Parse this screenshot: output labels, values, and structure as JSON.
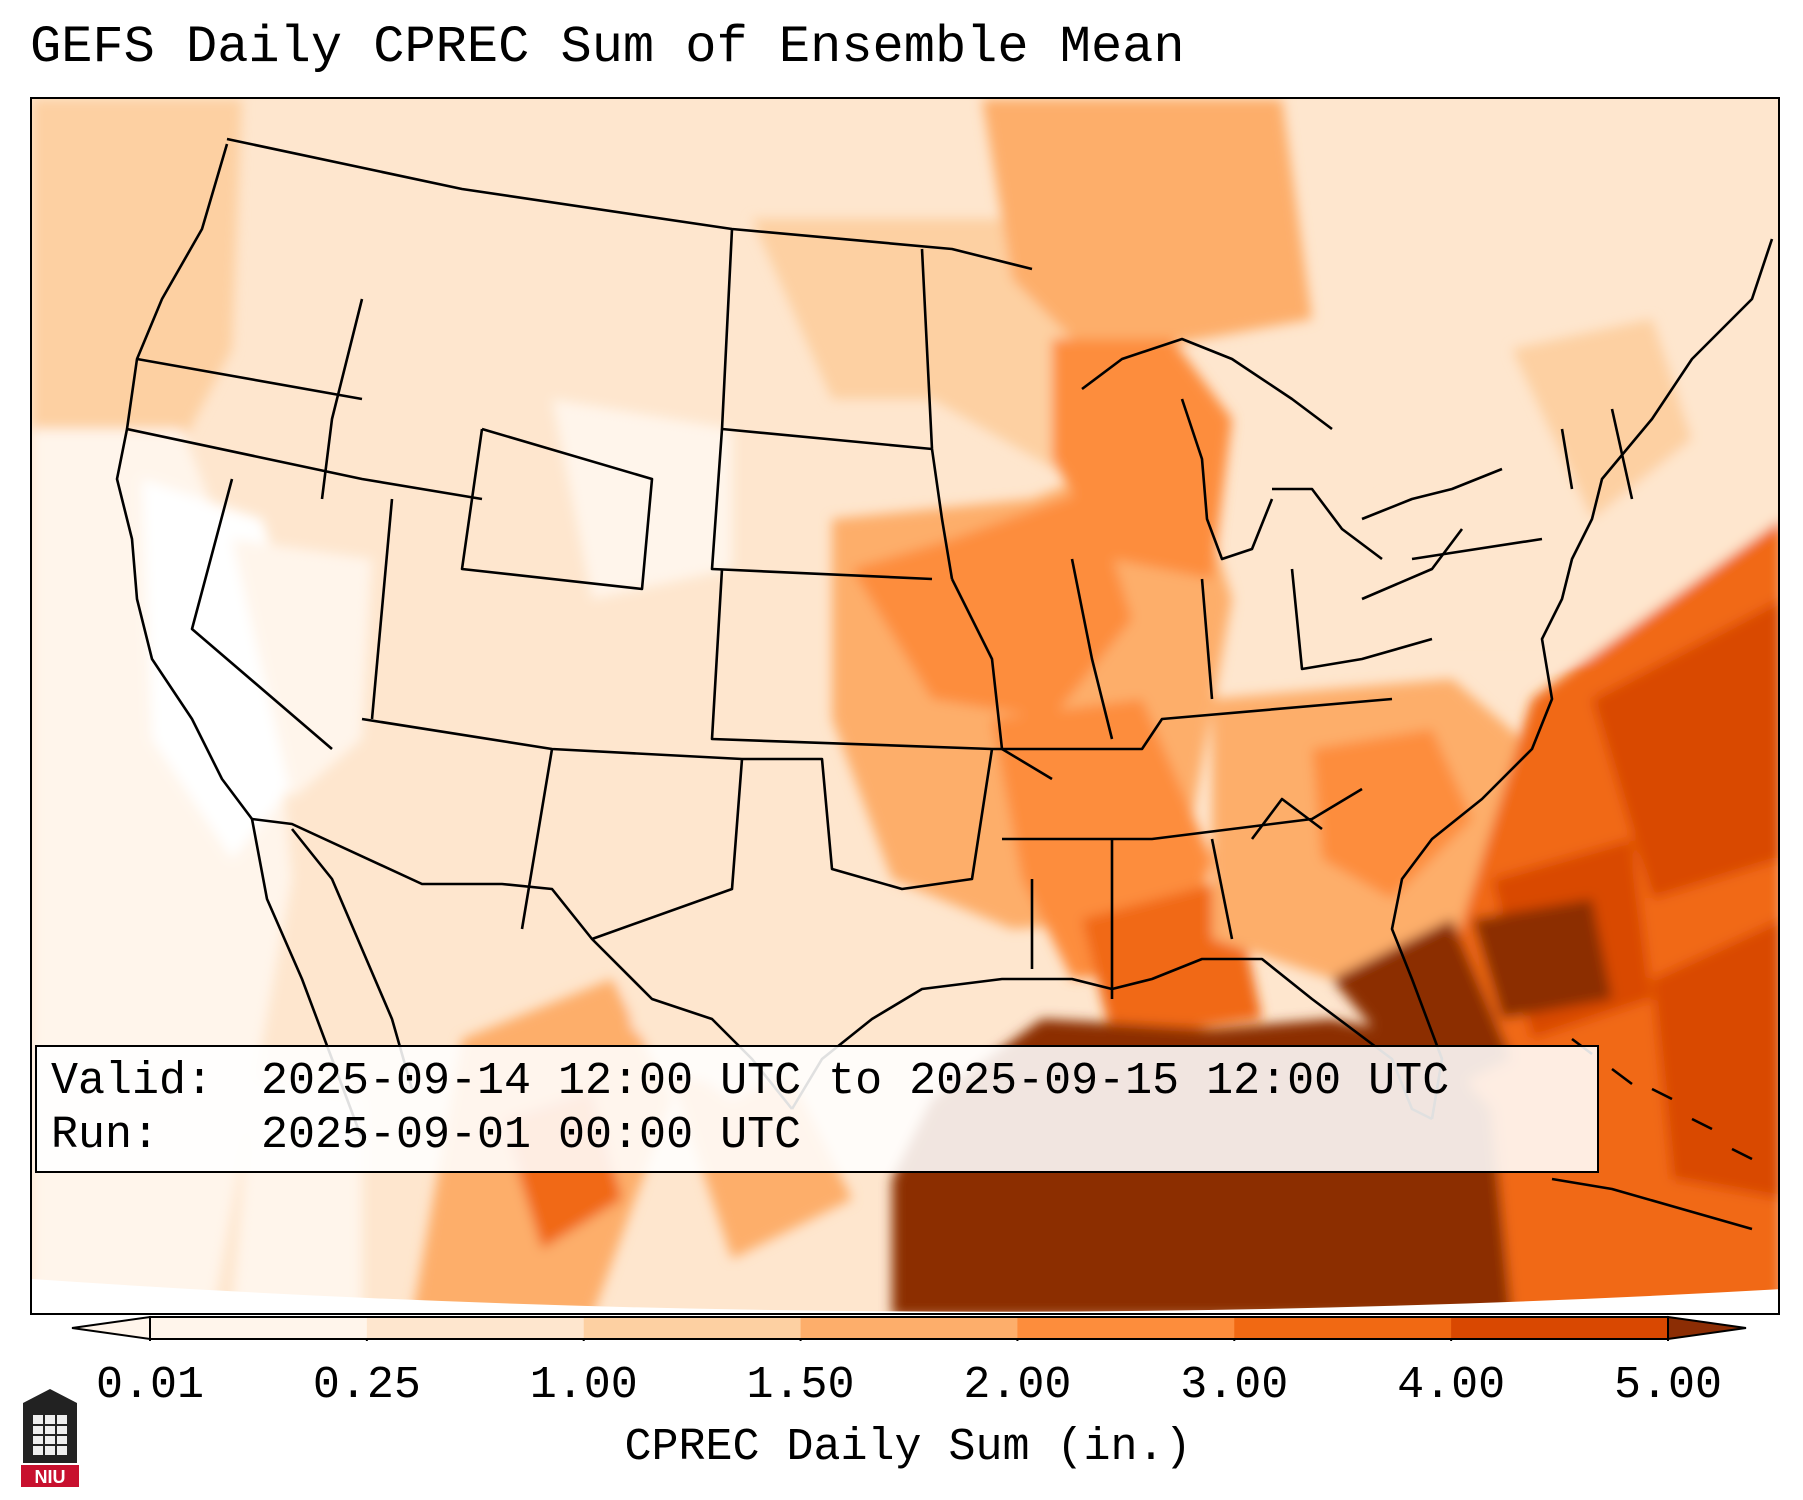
{
  "title": "GEFS Daily CPREC Sum of Ensemble Mean",
  "info": {
    "valid_label": "Valid:",
    "valid_value": "2025-09-14 12:00 UTC to 2025-09-15 12:00 UTC",
    "run_label": "Run:",
    "run_value": "2025-09-01 00:00 UTC"
  },
  "colorbar": {
    "label": "CPREC Daily Sum (in.)",
    "ticks": [
      "0.01",
      "0.25",
      "1.00",
      "1.50",
      "2.00",
      "3.00",
      "4.00",
      "5.00"
    ],
    "colors": [
      "#fff5eb",
      "#fee6ce",
      "#fdd0a2",
      "#fdae6b",
      "#fd8d3c",
      "#f16913",
      "#d94801",
      "#8c2d04"
    ],
    "extend": "both"
  },
  "logo": {
    "text": "NIU",
    "name": "niu-logo"
  },
  "map": {
    "projection": "lambert-conformal",
    "region": "CONUS",
    "palette": "oranges"
  }
}
